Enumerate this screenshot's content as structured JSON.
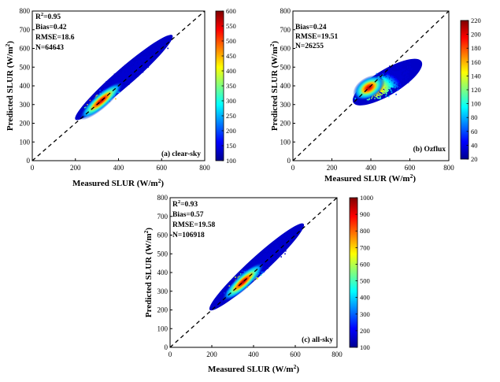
{
  "chart_data": [
    {
      "type": "scatter",
      "subtype": "density-scatter",
      "panel_label": "(a) clear-sky",
      "xlabel": "Measured SLUR (W/m",
      "ylabel": "Predicted SLUR (W/m",
      "xlim": [
        0,
        800
      ],
      "ylim": [
        0,
        800
      ],
      "xticks": [
        "0",
        "200",
        "400",
        "600",
        "800"
      ],
      "yticks": [
        "0",
        "100",
        "200",
        "300",
        "400",
        "500",
        "600",
        "700",
        "800"
      ],
      "reference_line": "1:1 dashed",
      "stats": {
        "r2_prefix": "R",
        "r2_value": "=0.95",
        "bias": "Bias=0.42",
        "rmse": "RMSE=18.6",
        "n": "N=64643"
      },
      "colorbar": {
        "min": 100,
        "max": 600,
        "ticks": [
          "600",
          "550",
          "500",
          "450",
          "400",
          "350",
          "300",
          "250",
          "200",
          "150",
          "100"
        ]
      },
      "density_cloud": {
        "x_range": [
          200,
          650
        ],
        "y_range": [
          220,
          670
        ],
        "peak": [
          320,
          320
        ]
      }
    },
    {
      "type": "scatter",
      "subtype": "density-scatter",
      "panel_label": "(b) Ozflux",
      "xlabel": "Measured SLUR (W/m",
      "ylabel": "Predicted SLUR (W/m",
      "xlim": [
        0,
        800
      ],
      "ylim": [
        0,
        800
      ],
      "xticks": [
        "0",
        "200",
        "400",
        "600",
        "800"
      ],
      "yticks": [
        "0",
        "100",
        "200",
        "300",
        "400",
        "500",
        "600",
        "700",
        "800"
      ],
      "reference_line": "1:1 dashed",
      "stats": {
        "bias": "Bias=0.24",
        "rmse": "RMSE=19.51",
        "n": "N=26255"
      },
      "colorbar": {
        "min": 20,
        "max": 220,
        "ticks": [
          "220",
          "200",
          "180",
          "160",
          "140",
          "120",
          "100",
          "80",
          "60",
          "40",
          "20"
        ]
      },
      "density_cloud": {
        "x_range": [
          310,
          660
        ],
        "y_range": [
          310,
          530
        ],
        "peak": [
          390,
          390
        ]
      }
    },
    {
      "type": "scatter",
      "subtype": "density-scatter",
      "panel_label": "(c) all-sky",
      "xlabel": "Measured SLUR (W/m",
      "ylabel": "Predicted SLUR (W/m",
      "xlim": [
        0,
        800
      ],
      "ylim": [
        0,
        800
      ],
      "xticks": [
        "0",
        "200",
        "400",
        "600",
        "800"
      ],
      "yticks": [
        "0",
        "100",
        "200",
        "300",
        "400",
        "500",
        "600",
        "700",
        "800"
      ],
      "reference_line": "1:1 dashed",
      "stats": {
        "r2_prefix": "R",
        "r2_value": "=0.93",
        "bias": "Bias=0.57",
        "rmse": "RMSE=19.58",
        "n": "N=106918"
      },
      "colorbar": {
        "min": 100,
        "max": 1000,
        "ticks": [
          "1000",
          "900",
          "800",
          "700",
          "600",
          "500",
          "400",
          "300",
          "200",
          "100"
        ]
      },
      "density_cloud": {
        "x_range": [
          190,
          640
        ],
        "y_range": [
          200,
          660
        ],
        "peak": [
          350,
          350
        ]
      }
    }
  ]
}
